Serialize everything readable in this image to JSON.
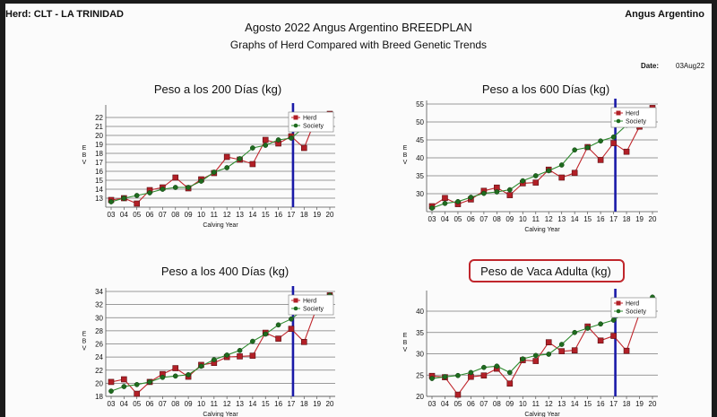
{
  "header": {
    "herd": "Herd: CLT - LA TRINIDAD",
    "breed": "Angus Argentino",
    "title": "Agosto 2022 Angus Argentino BREEDPLAN",
    "subtitle": "Graphs of Herd Compared with Breed Genetic Trends",
    "date_label": "Date:",
    "date_value": "03Aug22"
  },
  "colors": {
    "herd": "#c0262c",
    "society": "#2e8b2e",
    "marker_line": "#1a1aa8",
    "highlight_box": "#c0262c"
  },
  "chart_data": [
    {
      "type": "line",
      "title": "Peso a los 200 Días (kg)",
      "xlabel": "Calving Year",
      "ylabel": "EBV",
      "categories": [
        "03",
        "04",
        "05",
        "06",
        "07",
        "08",
        "09",
        "10",
        "11",
        "12",
        "13",
        "14",
        "15",
        "16",
        "17",
        "18",
        "19",
        "20"
      ],
      "ylim": [
        12,
        23
      ],
      "yticks": [
        13,
        14,
        15,
        16,
        17,
        18,
        19,
        20,
        21,
        22
      ],
      "marker_category": "17",
      "legend_position": "top-right",
      "grid": true,
      "series": [
        {
          "name": "Herd",
          "values": [
            12.8,
            13.0,
            12.4,
            13.9,
            14.2,
            15.3,
            14.1,
            15.1,
            15.8,
            17.6,
            17.3,
            16.8,
            19.5,
            19.1,
            19.9,
            18.6,
            22.2,
            22.4
          ]
        },
        {
          "name": "Society",
          "values": [
            12.6,
            13.0,
            13.3,
            13.6,
            14.0,
            14.2,
            14.2,
            14.9,
            15.9,
            16.4,
            17.4,
            18.6,
            18.9,
            19.5,
            19.7,
            20.9,
            21.6,
            21.8
          ]
        }
      ]
    },
    {
      "type": "line",
      "title": "Peso a los 600 Días (kg)",
      "xlabel": "Calving Year",
      "ylabel": "EBV",
      "categories": [
        "03",
        "04",
        "05",
        "06",
        "07",
        "08",
        "09",
        "10",
        "11",
        "12",
        "13",
        "14",
        "15",
        "16",
        "17",
        "18",
        "19",
        "20"
      ],
      "ylim": [
        25,
        55
      ],
      "yticks": [
        30,
        35,
        40,
        45,
        50,
        55
      ],
      "marker_category": "17",
      "legend_position": "top-right",
      "grid": true,
      "series": [
        {
          "name": "Herd",
          "values": [
            26.5,
            28.8,
            27.1,
            28.4,
            30.8,
            31.7,
            29.6,
            32.9,
            33.1,
            36.7,
            34.5,
            35.8,
            43.0,
            39.4,
            44.1,
            41.7,
            48.7,
            53.9
          ]
        },
        {
          "name": "Society",
          "values": [
            26.0,
            27.3,
            27.8,
            29.0,
            30.1,
            30.5,
            31.1,
            33.6,
            35.0,
            36.4,
            38.0,
            42.2,
            42.9,
            44.7,
            45.8,
            49.1,
            51.1,
            52.8
          ]
        }
      ]
    },
    {
      "type": "line",
      "title": "Peso a los 400 Días (kg)",
      "xlabel": "Calving Year",
      "ylabel": "EBV",
      "categories": [
        "03",
        "04",
        "05",
        "06",
        "07",
        "08",
        "09",
        "10",
        "11",
        "12",
        "13",
        "14",
        "15",
        "16",
        "17",
        "18",
        "19",
        "20"
      ],
      "ylim": [
        18,
        34
      ],
      "yticks": [
        18,
        20,
        22,
        24,
        26,
        28,
        30,
        32,
        34
      ],
      "marker_category": "17",
      "legend_position": "top-right",
      "grid": true,
      "series": [
        {
          "name": "Herd",
          "values": [
            20.2,
            20.6,
            18.4,
            20.2,
            21.4,
            22.3,
            21.0,
            22.8,
            23.1,
            24.0,
            24.1,
            24.2,
            27.7,
            26.8,
            28.3,
            26.3,
            31.6,
            33.4
          ]
        },
        {
          "name": "Society",
          "values": [
            18.8,
            19.5,
            19.8,
            20.2,
            20.9,
            21.1,
            21.3,
            22.6,
            23.6,
            24.3,
            25.0,
            26.4,
            27.5,
            28.9,
            29.8,
            31.3,
            32.6,
            33.4
          ]
        }
      ]
    },
    {
      "type": "line",
      "title": "Peso de Vaca Adulta (kg)",
      "xlabel": "Calving Year",
      "ylabel": "EBV",
      "categories": [
        "03",
        "04",
        "05",
        "06",
        "07",
        "08",
        "09",
        "10",
        "11",
        "12",
        "13",
        "14",
        "15",
        "16",
        "17",
        "18",
        "19",
        "20"
      ],
      "ylim": [
        20,
        44
      ],
      "yticks": [
        20,
        25,
        30,
        35,
        40
      ],
      "marker_category": "17",
      "legend_position": "top-right",
      "grid": true,
      "series": [
        {
          "name": "Herd",
          "values": [
            24.8,
            24.5,
            20.4,
            24.6,
            24.9,
            26.5,
            23.0,
            28.5,
            28.3,
            32.7,
            30.6,
            30.8,
            36.4,
            33.1,
            34.2,
            30.7,
            39.5,
            39.7
          ]
        },
        {
          "name": "Society",
          "values": [
            24.2,
            24.6,
            24.9,
            25.6,
            26.8,
            27.1,
            25.6,
            28.8,
            29.6,
            29.9,
            32.2,
            35.0,
            36.0,
            37.0,
            37.9,
            39.9,
            41.6,
            43.3
          ]
        }
      ]
    }
  ]
}
